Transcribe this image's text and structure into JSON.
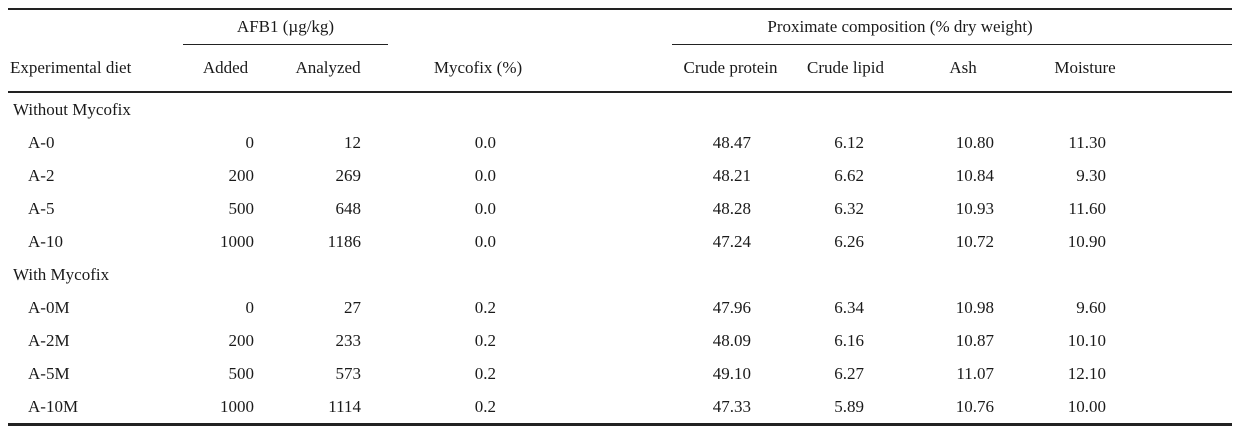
{
  "table": {
    "col_groups": [
      {
        "label": "AFB1 (µg/kg)"
      },
      {
        "label": "Proximate composition (% dry weight)"
      }
    ],
    "columns": [
      "Experimental diet",
      "Added",
      "Analyzed",
      "Mycofix (%)",
      "Crude protein",
      "Crude lipid",
      "Ash",
      "Moisture"
    ],
    "sections": [
      {
        "label": "Without Mycofix",
        "rows": [
          {
            "diet": "A-0",
            "values": [
              "0",
              "12",
              "0.0",
              "48.47",
              "6.12",
              "10.80",
              "11.30"
            ]
          },
          {
            "diet": "A-2",
            "values": [
              "200",
              "269",
              "0.0",
              "48.21",
              "6.62",
              "10.84",
              "9.30"
            ]
          },
          {
            "diet": "A-5",
            "values": [
              "500",
              "648",
              "0.0",
              "48.28",
              "6.32",
              "10.93",
              "11.60"
            ]
          },
          {
            "diet": "A-10",
            "values": [
              "1000",
              "1186",
              "0.0",
              "47.24",
              "6.26",
              "10.72",
              "10.90"
            ]
          }
        ]
      },
      {
        "label": "With Mycofix",
        "rows": [
          {
            "diet": "A-0M",
            "values": [
              "0",
              "27",
              "0.2",
              "47.96",
              "6.34",
              "10.98",
              "9.60"
            ]
          },
          {
            "diet": "A-2M",
            "values": [
              "200",
              "233",
              "0.2",
              "48.09",
              "6.16",
              "10.87",
              "10.10"
            ]
          },
          {
            "diet": "A-5M",
            "values": [
              "500",
              "573",
              "0.2",
              "49.10",
              "6.27",
              "11.07",
              "12.10"
            ]
          },
          {
            "diet": "A-10M",
            "values": [
              "1000",
              "1114",
              "0.2",
              "47.33",
              "5.89",
              "10.76",
              "10.00"
            ]
          }
        ]
      }
    ]
  }
}
